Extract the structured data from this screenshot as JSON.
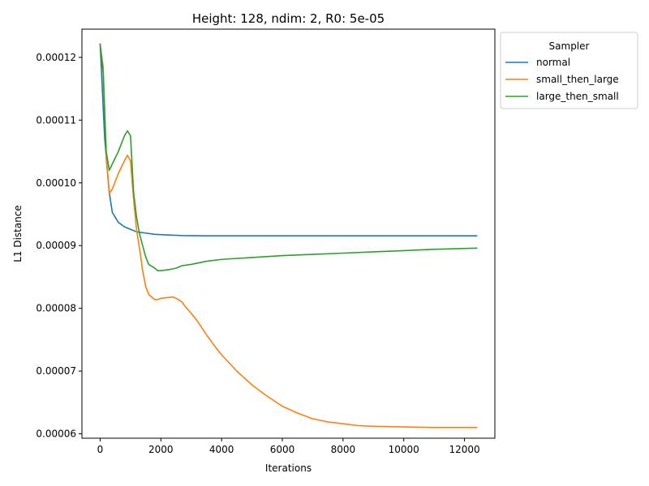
{
  "chart_data": {
    "type": "line",
    "title": "Height: 128, ndim: 2, R0: 5e-05",
    "xlabel": "Iterations",
    "ylabel": "L1 Distance",
    "xlim": [
      -600,
      13000
    ],
    "ylim": [
      5.93e-05,
      0.0001245
    ],
    "xticks": [
      0,
      2000,
      4000,
      6000,
      8000,
      10000,
      12000
    ],
    "xtick_labels": [
      "0",
      "2000",
      "4000",
      "6000",
      "8000",
      "10000",
      "12000"
    ],
    "yticks": [
      6e-05,
      7e-05,
      8e-05,
      9e-05,
      0.0001,
      0.00011,
      0.00012
    ],
    "ytick_labels": [
      "0.00006",
      "0.00007",
      "0.00008",
      "0.00009",
      "0.00010",
      "0.00011",
      "0.00012"
    ],
    "grid": false,
    "legend": {
      "title": "Sampler",
      "placement": "outside-top-right"
    },
    "series": [
      {
        "name": "normal",
        "color": "#1f77b4",
        "x": [
          0,
          150,
          300,
          400,
          600,
          800,
          1000,
          1200,
          1500,
          1800,
          2200,
          2700,
          3500,
          5000,
          8000,
          12400
        ],
        "y": [
          0.0001221,
          0.000107,
          9.85e-05,
          9.53e-05,
          9.37e-05,
          9.3e-05,
          9.26e-05,
          9.22e-05,
          9.2e-05,
          9.18e-05,
          9.17e-05,
          9.16e-05,
          9.155e-05,
          9.155e-05,
          9.155e-05,
          9.155e-05
        ]
      },
      {
        "name": "small_then_large",
        "color": "#ff7f0e",
        "x": [
          0,
          100,
          200,
          300,
          400,
          600,
          800,
          900,
          1000,
          1100,
          1200,
          1300,
          1400,
          1500,
          1600,
          1800,
          1900,
          2000,
          2200,
          2400,
          2500,
          2700,
          2800,
          3000,
          3200,
          3500,
          3800,
          4000,
          4500,
          5000,
          5500,
          6000,
          6500,
          7000,
          7500,
          8000,
          8500,
          9000,
          10000,
          11000,
          12400
        ],
        "y": [
          0.0001221,
          0.0001185,
          0.000104,
          9.83e-05,
          9.9e-05,
          0.0001015,
          0.0001035,
          0.0001044,
          0.0001035,
          9.75e-05,
          9.25e-05,
          8.95e-05,
          8.6e-05,
          8.35e-05,
          8.22e-05,
          8.14e-05,
          8.14e-05,
          8.16e-05,
          8.17e-05,
          8.18e-05,
          8.16e-05,
          8.1e-05,
          8.03e-05,
          7.92e-05,
          7.8e-05,
          7.58e-05,
          7.38e-05,
          7.26e-05,
          7e-05,
          6.78e-05,
          6.6e-05,
          6.44e-05,
          6.33e-05,
          6.24e-05,
          6.19e-05,
          6.16e-05,
          6.13e-05,
          6.12e-05,
          6.11e-05,
          6.1e-05,
          6.1e-05
        ]
      },
      {
        "name": "large_then_small",
        "color": "#2ca02c",
        "x": [
          0,
          100,
          200,
          300,
          400,
          500,
          600,
          800,
          900,
          1000,
          1100,
          1200,
          1300,
          1400,
          1500,
          1600,
          1800,
          1900,
          2000,
          2300,
          2500,
          2700,
          3000,
          3500,
          4000,
          5000,
          6000,
          7000,
          8000,
          9000,
          10000,
          11000,
          12400
        ],
        "y": [
          0.0001221,
          0.0001175,
          0.000105,
          0.000102,
          0.000103,
          0.000104,
          0.000105,
          0.0001075,
          0.0001083,
          0.0001075,
          9.85e-05,
          9.45e-05,
          9.18e-05,
          9e-05,
          8.82e-05,
          8.7e-05,
          8.64e-05,
          8.6e-05,
          8.6e-05,
          8.62e-05,
          8.64e-05,
          8.68e-05,
          8.7e-05,
          8.75e-05,
          8.78e-05,
          8.81e-05,
          8.84e-05,
          8.86e-05,
          8.88e-05,
          8.9e-05,
          8.92e-05,
          8.94e-05,
          8.96e-05
        ]
      }
    ]
  }
}
